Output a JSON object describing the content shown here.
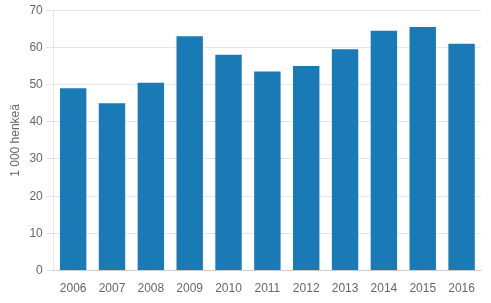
{
  "chart_data": {
    "type": "bar",
    "ylabel": "1 000 henkeä",
    "categories": [
      "2006",
      "2007",
      "2008",
      "2009",
      "2010",
      "2011",
      "2012",
      "2013",
      "2014",
      "2015",
      "2016"
    ],
    "values": [
      49.0,
      45.0,
      50.5,
      63.0,
      58.0,
      53.5,
      55.0,
      59.5,
      64.5,
      65.5,
      61.0
    ],
    "color": "#1a7ab5",
    "ylim": [
      0,
      70
    ],
    "yticks": [
      0,
      10,
      20,
      30,
      40,
      50,
      60,
      70
    ],
    "grid": true
  }
}
